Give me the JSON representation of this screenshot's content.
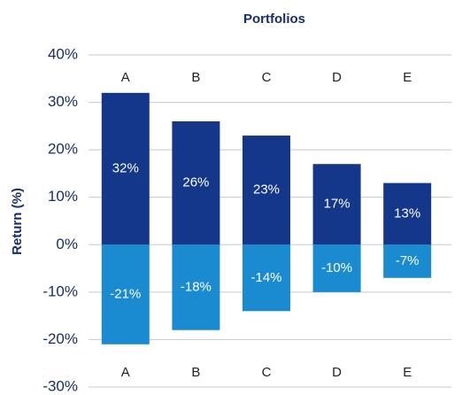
{
  "chart_data": {
    "type": "bar",
    "title": "Portfolios",
    "y_label": "Return (%)",
    "categories": [
      "A",
      "B",
      "C",
      "D",
      "E"
    ],
    "series": [
      {
        "color": "#14378a",
        "values": [
          32,
          26,
          23,
          17,
          13
        ],
        "value_labels": [
          "32%",
          "26%",
          "23%",
          "17%",
          "13%"
        ]
      },
      {
        "color": "#1a8bd0",
        "values": [
          -21,
          -18,
          -14,
          -10,
          -7
        ],
        "value_labels": [
          "-21%",
          "-18%",
          "-14%",
          "-10%",
          "-7%"
        ]
      }
    ],
    "ylim": [
      -30,
      40
    ],
    "yticks": [
      {
        "value": 40,
        "label": "40%"
      },
      {
        "value": 30,
        "label": "30%"
      },
      {
        "value": 20,
        "label": "20%"
      },
      {
        "value": 10,
        "label": "10%"
      },
      {
        "value": 0,
        "label": "0%"
      },
      {
        "value": -10,
        "label": "-10%"
      },
      {
        "value": -20,
        "label": "-20%"
      },
      {
        "value": -30,
        "label": "-30%"
      }
    ],
    "grid": true
  }
}
